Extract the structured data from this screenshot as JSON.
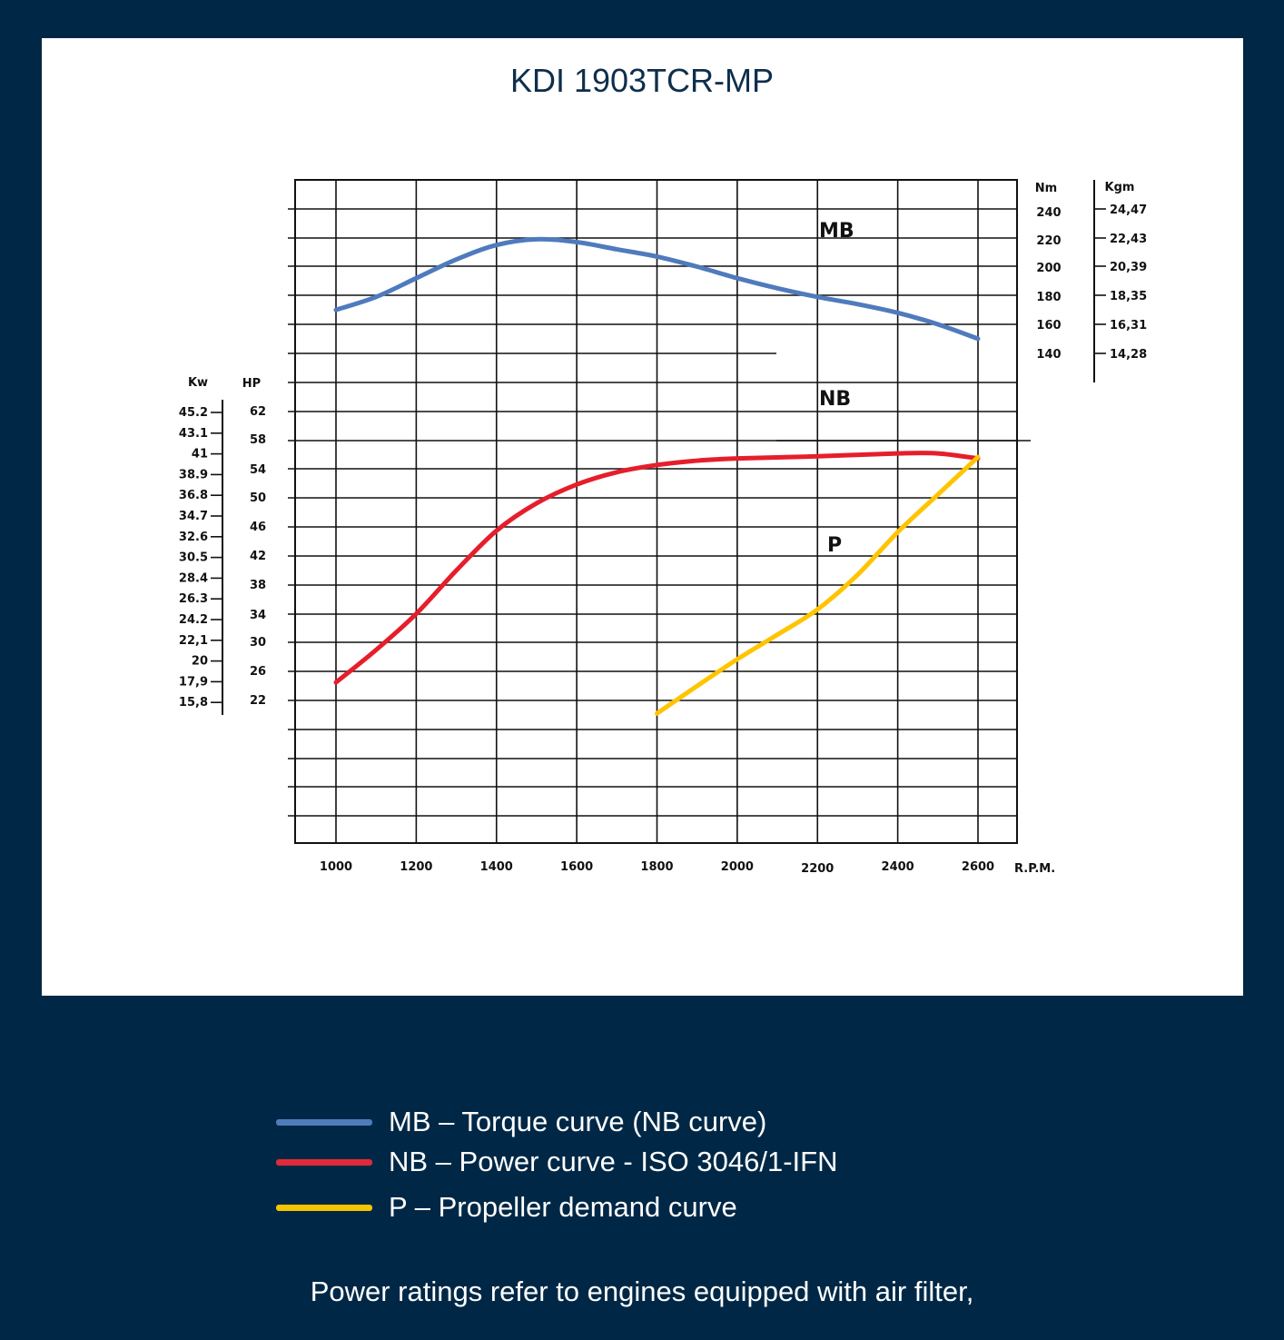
{
  "chart_data": {
    "type": "line",
    "title": "KDI 1903TCR-MP",
    "x_unit_label": "R.P.M.",
    "x_ticks": [
      "1000",
      "1200",
      "1400",
      "1600",
      "1800",
      "2000",
      "2200",
      "2400",
      "2600"
    ],
    "xlim": [
      900,
      2700
    ],
    "torque_axis": {
      "nm_label": "Nm",
      "kgm_label": "Kgm",
      "nm_ticks": [
        "240",
        "220",
        "200",
        "180",
        "160",
        "140"
      ],
      "kgm_ticks": [
        "24,47",
        "22,43",
        "20,39",
        "18,35",
        "16,31",
        "14,28"
      ]
    },
    "power_axis": {
      "kw_label": "Kw",
      "hp_label": "HP",
      "hp_ticks": [
        "62",
        "58",
        "54",
        "50",
        "46",
        "42",
        "38",
        "34",
        "30",
        "26",
        "22"
      ],
      "kw_ticks": [
        "45.2",
        "43.1",
        "41",
        "38.9",
        "36.8",
        "34.7",
        "32.6",
        "30.5",
        "28.4",
        "26.3",
        "24.2",
        "22,1",
        "20",
        "17,9",
        "15,8"
      ]
    },
    "grid": true,
    "series": [
      {
        "name": "MB",
        "axis": "Nm",
        "color": "#4f7bbd",
        "x": [
          1000,
          1100,
          1200,
          1300,
          1400,
          1500,
          1600,
          1700,
          1800,
          1900,
          2000,
          2100,
          2200,
          2300,
          2400,
          2500,
          2600
        ],
        "y": [
          170,
          179,
          192,
          205,
          215,
          219,
          217,
          212,
          207,
          200,
          192,
          185,
          179,
          174,
          168,
          160,
          150
        ]
      },
      {
        "name": "NB",
        "axis": "HP",
        "color": "#e61e2b",
        "x": [
          1000,
          1100,
          1200,
          1300,
          1400,
          1500,
          1600,
          1700,
          1800,
          1900,
          2000,
          2200,
          2400,
          2500,
          2600
        ],
        "y": [
          24.5,
          29,
          34,
          40,
          45.5,
          49.3,
          51.9,
          53.6,
          54.6,
          55.2,
          55.5,
          55.8,
          56.2,
          56.2,
          55.5
        ]
      },
      {
        "name": "P",
        "axis": "HP",
        "color": "#ffc400",
        "x": [
          1800,
          1900,
          2000,
          2100,
          2200,
          2300,
          2400,
          2500,
          2600
        ],
        "y": [
          20.2,
          24.0,
          27.7,
          31.1,
          34.6,
          39.4,
          45.3,
          50.5,
          55.7
        ]
      }
    ]
  },
  "legend": [
    {
      "label": "MB – Torque curve (NB curve)",
      "color": "#4f7bbd"
    },
    {
      "label": "NB – Power curve - ISO 3046/1-IFN",
      "color": "#e02a3a"
    },
    {
      "label": "P – Propeller demand curve",
      "color": "#f4c400"
    }
  ],
  "footnote": "Power ratings refer to engines equipped with air filter,"
}
